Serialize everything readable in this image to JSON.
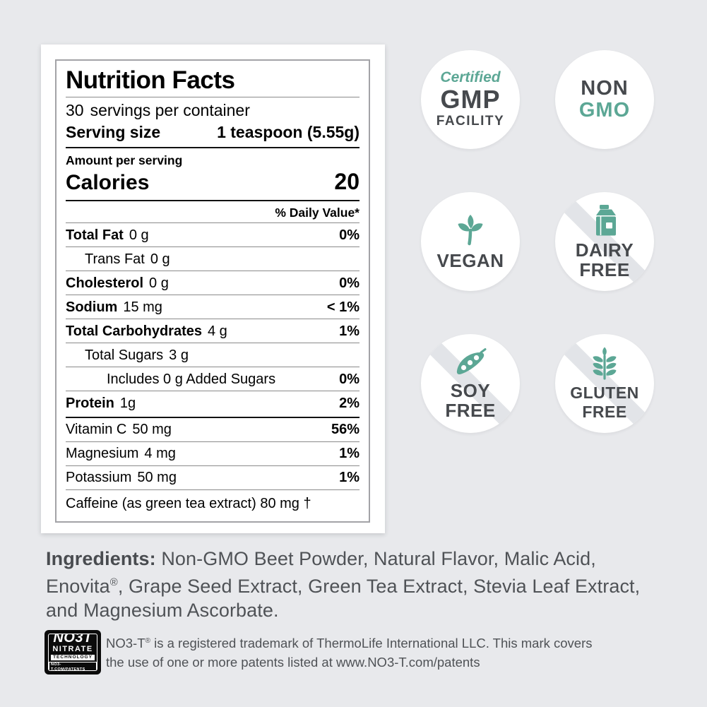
{
  "colors": {
    "background": "#e8e9ec",
    "accent_teal": "#5ca795",
    "badge_text": "#46494d",
    "label_text": "#000000",
    "body_text": "#4f5256",
    "slash_gray": "#e2e4e8"
  },
  "nutrition": {
    "title": "Nutrition Facts",
    "servings_count": "30",
    "servings_text": "servings per container",
    "serving_size_label": "Serving size",
    "serving_size_value": "1 teaspoon (5.55g)",
    "amount_per_serving": "Amount per serving",
    "calories_label": "Calories",
    "calories_value": "20",
    "daily_value_header": "% Daily Value*",
    "rows": [
      {
        "label": "Total Fat",
        "amount": "0 g",
        "value": "0%",
        "bold": true,
        "indent": 0
      },
      {
        "label": "Trans Fat",
        "amount": "0 g",
        "value": "",
        "bold": false,
        "indent": 1
      },
      {
        "label": "Cholesterol",
        "amount": "0 g",
        "value": "0%",
        "bold": true,
        "indent": 0
      },
      {
        "label": "Sodium",
        "amount": "15 mg",
        "value": "< 1%",
        "bold": true,
        "indent": 0
      },
      {
        "label": "Total Carbohydrates",
        "amount": "4 g",
        "value": "1%",
        "bold": true,
        "indent": 0
      },
      {
        "label": "Total Sugars",
        "amount": "3 g",
        "value": "",
        "bold": false,
        "indent": 1
      },
      {
        "label": "Includes 0 g Added Sugars",
        "amount": "",
        "value": "0%",
        "bold": false,
        "indent": 2
      },
      {
        "label": "Protein",
        "amount": "1g",
        "value": "2%",
        "bold": true,
        "indent": 0,
        "thick_after": true
      },
      {
        "label": "Vitamin C",
        "amount": "50 mg",
        "value": "56%",
        "bold": false,
        "indent": 0
      },
      {
        "label": "Magnesium",
        "amount": "4 mg",
        "value": "1%",
        "bold": false,
        "indent": 0
      },
      {
        "label": "Potassium",
        "amount": "50 mg",
        "value": "1%",
        "bold": false,
        "indent": 0
      },
      {
        "label": "Caffeine (as green tea extract) 80 mg †",
        "amount": "",
        "value": "",
        "bold": false,
        "indent": 0,
        "last": true
      }
    ]
  },
  "badges": {
    "gmp": {
      "top_label": "Certified",
      "main_label": "GMP",
      "sub_label": "FACILITY"
    },
    "non_gmo": {
      "line1": "NON",
      "line2": "GMO"
    },
    "vegan": {
      "label": "VEGAN",
      "icon": "leaf-icon"
    },
    "dairy_free": {
      "line1": "DAIRY",
      "line2": "FREE",
      "icon": "milk-carton-icon"
    },
    "soy_free": {
      "line1": "SOY",
      "line2": "FREE",
      "icon": "soybean-pod-icon"
    },
    "gluten_free": {
      "line1": "GLUTEN",
      "line2": "FREE",
      "icon": "wheat-icon"
    }
  },
  "ingredients": {
    "heading": "Ingredients:",
    "line1_rest": " Non-GMO Beet Powder, Natural Flavor, Malic Acid,",
    "line2_pre": "Enovita",
    "line2_sup": "®",
    "line2_rest": ", Grape Seed Extract, Green Tea Extract, Stevia Leaf Extract,",
    "line3": "and Magnesium Ascorbate."
  },
  "trademark": {
    "logo": {
      "word": "NO3T",
      "line2": "NITRATE",
      "line3": "TECHNOLOGY",
      "line4": "NO3-T.COM/PATENTS"
    },
    "line1_pre": "NO3-T",
    "line1_sup": "®",
    "line1_rest": " is a registered trademark of ThermoLife International LLC. This mark covers",
    "line2": "the use of one or more patents listed at www.NO3-T.com/patents"
  }
}
